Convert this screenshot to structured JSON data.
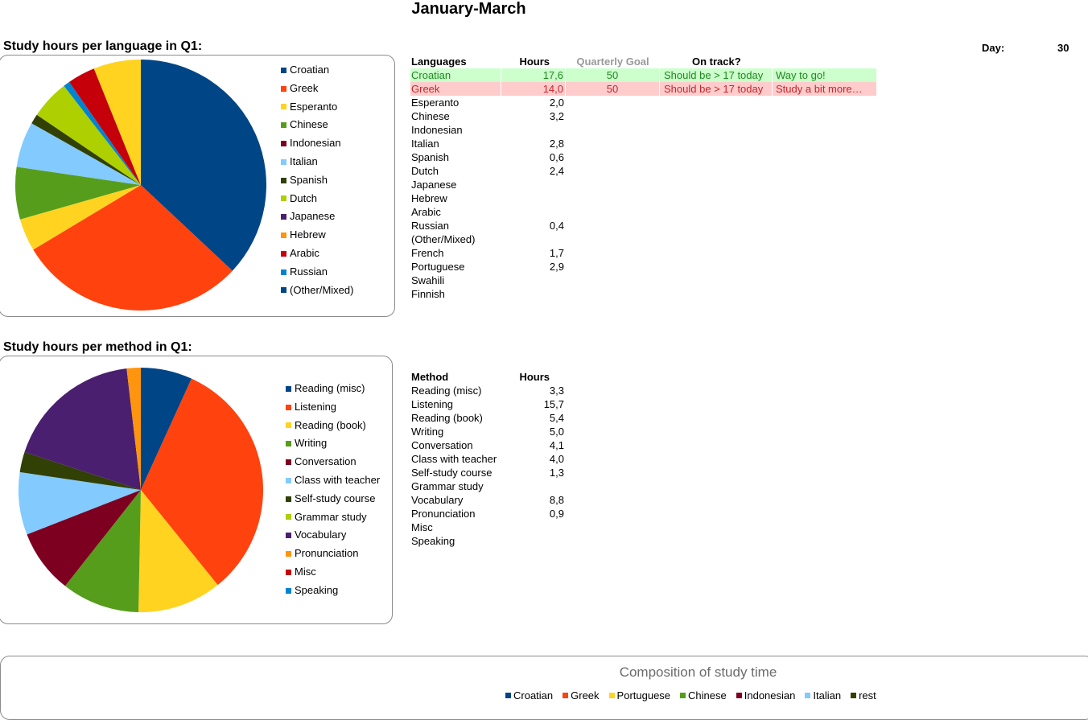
{
  "page_title": "January-March",
  "day": {
    "label": "Day:",
    "value": "30"
  },
  "colors": {
    "good_bg": "#ccffcc",
    "good_text": "#1e8a1e",
    "bad_bg": "#ffcccc",
    "bad_text": "#c8242a"
  },
  "language_section": {
    "title": "Study hours per language in Q1:",
    "table": {
      "headers": {
        "name": "Languages",
        "hours": "Hours",
        "goal": "Quarterly Goal",
        "track": "On track?"
      },
      "rows": [
        {
          "name": "Croatian",
          "hours": "17,6",
          "goal": "50",
          "track": "Should be >  17 today",
          "msg": "Way to go!",
          "status": "good"
        },
        {
          "name": "Greek",
          "hours": "14,0",
          "goal": "50",
          "track": "Should be >  17 today",
          "msg": "Study a bit more…",
          "status": "bad"
        },
        {
          "name": "Esperanto",
          "hours": "2,0"
        },
        {
          "name": "Chinese",
          "hours": "3,2"
        },
        {
          "name": "Indonesian",
          "hours": ""
        },
        {
          "name": "Italian",
          "hours": "2,8"
        },
        {
          "name": "Spanish",
          "hours": "0,6"
        },
        {
          "name": "Dutch",
          "hours": "2,4"
        },
        {
          "name": "Japanese",
          "hours": ""
        },
        {
          "name": "Hebrew",
          "hours": ""
        },
        {
          "name": "Arabic",
          "hours": ""
        },
        {
          "name": "Russian",
          "hours": "0,4"
        },
        {
          "name": "(Other/Mixed)",
          "hours": ""
        },
        {
          "name": "French",
          "hours": "1,7"
        },
        {
          "name": "Portuguese",
          "hours": "2,9"
        },
        {
          "name": "Swahili",
          "hours": ""
        },
        {
          "name": "Finnish",
          "hours": ""
        }
      ]
    }
  },
  "method_section": {
    "title": "Study hours per method in Q1:",
    "table": {
      "headers": {
        "name": "Method",
        "hours": "Hours"
      },
      "rows": [
        {
          "name": "Reading (misc)",
          "hours": "3,3"
        },
        {
          "name": "Listening",
          "hours": "15,7"
        },
        {
          "name": "Reading (book)",
          "hours": "5,4"
        },
        {
          "name": "Writing",
          "hours": "5,0"
        },
        {
          "name": "Conversation",
          "hours": "4,1"
        },
        {
          "name": "Class with teacher",
          "hours": "4,0"
        },
        {
          "name": "Self-study course",
          "hours": "1,3"
        },
        {
          "name": "Grammar study",
          "hours": ""
        },
        {
          "name": "Vocabulary",
          "hours": "8,8"
        },
        {
          "name": "Pronunciation",
          "hours": "0,9"
        },
        {
          "name": "Misc",
          "hours": ""
        },
        {
          "name": "Speaking",
          "hours": ""
        }
      ]
    }
  },
  "chart_data": [
    {
      "type": "pie",
      "legend_position": "right",
      "categories": [
        "Croatian",
        "Greek",
        "Esperanto",
        "Chinese",
        "Indonesian",
        "Italian",
        "Spanish",
        "Dutch",
        "Japanese",
        "Hebrew",
        "Arabic",
        "Russian",
        "(Other/Mixed)"
      ],
      "values": [
        17.6,
        14.0,
        2.0,
        3.2,
        0,
        2.8,
        0.6,
        2.4,
        0,
        0,
        0,
        0.4,
        0
      ],
      "pie_slices": [
        {
          "label": "Croatian",
          "value": 17.6,
          "color": "#004586"
        },
        {
          "label": "Greek",
          "value": 14.0,
          "color": "#ff420e"
        },
        {
          "label": "Esperanto",
          "value": 2.0,
          "color": "#ffd320"
        },
        {
          "label": "Chinese",
          "value": 3.2,
          "color": "#579d1c"
        },
        {
          "label": "Italian",
          "value": 2.8,
          "color": "#83caff"
        },
        {
          "label": "Spanish",
          "value": 0.6,
          "color": "#314004"
        },
        {
          "label": "Dutch",
          "value": 2.4,
          "color": "#aecf00"
        },
        {
          "label": "Russian",
          "value": 0.4,
          "color": "#0084d1"
        },
        {
          "label": "French",
          "value": 1.7,
          "color": "#c5000b"
        },
        {
          "label": "Portuguese",
          "value": 2.9,
          "color": "#ffd320"
        }
      ],
      "legend": [
        {
          "label": "Croatian",
          "color": "#004586"
        },
        {
          "label": "Greek",
          "color": "#ff420e"
        },
        {
          "label": "Esperanto",
          "color": "#ffd320"
        },
        {
          "label": "Chinese",
          "color": "#579d1c"
        },
        {
          "label": "Indonesian",
          "color": "#7e0021"
        },
        {
          "label": "Italian",
          "color": "#83caff"
        },
        {
          "label": "Spanish",
          "color": "#314004"
        },
        {
          "label": "Dutch",
          "color": "#aecf00"
        },
        {
          "label": "Japanese",
          "color": "#4b1f6f"
        },
        {
          "label": "Hebrew",
          "color": "#ff950e"
        },
        {
          "label": "Arabic",
          "color": "#c5000b"
        },
        {
          "label": "Russian",
          "color": "#0084d1"
        },
        {
          "label": "(Other/Mixed)",
          "color": "#004586"
        }
      ]
    },
    {
      "type": "pie",
      "legend_position": "right",
      "categories": [
        "Reading (misc)",
        "Listening",
        "Reading (book)",
        "Writing",
        "Conversation",
        "Class with teacher",
        "Self-study course",
        "Grammar study",
        "Vocabulary",
        "Pronunciation",
        "Misc",
        "Speaking"
      ],
      "values": [
        3.3,
        15.7,
        5.4,
        5.0,
        4.1,
        4.0,
        1.3,
        0,
        8.8,
        0.9,
        0,
        0
      ],
      "legend": [
        {
          "label": "Reading (misc)",
          "color": "#004586"
        },
        {
          "label": "Listening",
          "color": "#ff420e"
        },
        {
          "label": "Reading (book)",
          "color": "#ffd320"
        },
        {
          "label": "Writing",
          "color": "#579d1c"
        },
        {
          "label": "Conversation",
          "color": "#7e0021"
        },
        {
          "label": "Class with teacher",
          "color": "#83caff"
        },
        {
          "label": "Self-study course",
          "color": "#314004"
        },
        {
          "label": "Grammar study",
          "color": "#aecf00"
        },
        {
          "label": "Vocabulary",
          "color": "#4b1f6f"
        },
        {
          "label": "Pronunciation",
          "color": "#ff950e"
        },
        {
          "label": "Misc",
          "color": "#c5000b"
        },
        {
          "label": "Speaking",
          "color": "#0084d1"
        }
      ]
    },
    {
      "type": "bar",
      "title": "Composition of study time",
      "legend_position": "top",
      "series": [
        {
          "name": "Croatian",
          "color": "#004586"
        },
        {
          "name": "Greek",
          "color": "#ff420e"
        },
        {
          "name": "Portuguese",
          "color": "#ffd320"
        },
        {
          "name": "Chinese",
          "color": "#579d1c"
        },
        {
          "name": "Indonesian",
          "color": "#7e0021"
        },
        {
          "name": "Italian",
          "color": "#83caff"
        },
        {
          "name": "rest",
          "color": "#314004"
        }
      ]
    }
  ]
}
